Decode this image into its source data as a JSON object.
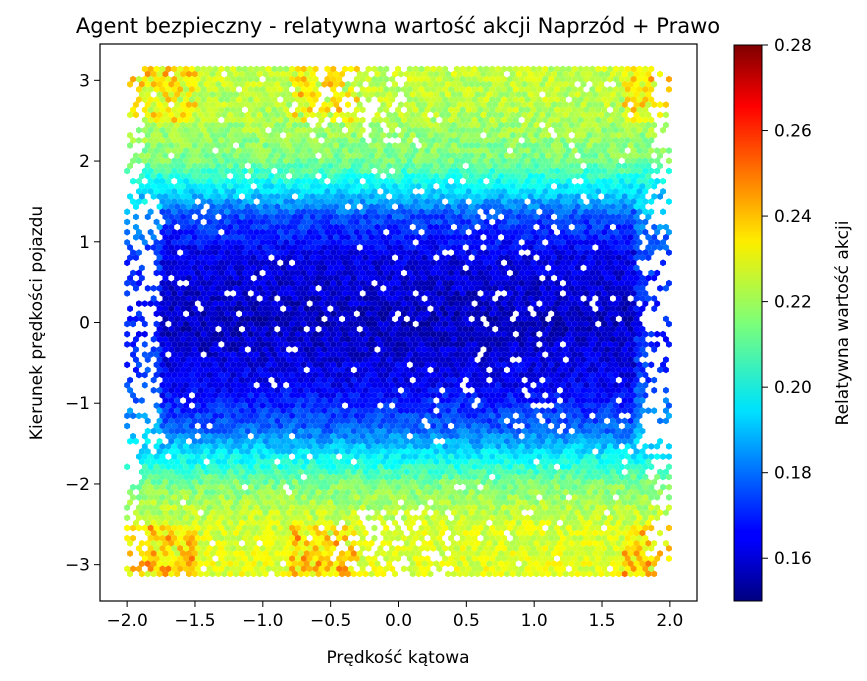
{
  "chart_data": {
    "type": "heatmap",
    "subtype": "hexbin",
    "title": "Agent bezpieczny - relatywna wartość akcji Naprzód + Prawo",
    "xlabel": "Prędkość kątowa",
    "ylabel": "Kierunek prędkości pojazdu",
    "xlim": [
      -2.2,
      2.2
    ],
    "ylim": [
      -3.45,
      3.45
    ],
    "xticks": [
      "−2.0",
      "−1.5",
      "−1.0",
      "−0.5",
      "0.0",
      "0.5",
      "1.0",
      "1.5",
      "2.0"
    ],
    "xtick_values": [
      -2.0,
      -1.5,
      -1.0,
      -0.5,
      0.0,
      0.5,
      1.0,
      1.5,
      2.0
    ],
    "yticks": [
      "3",
      "2",
      "1",
      "0",
      "−1",
      "−2",
      "−3"
    ],
    "ytick_values": [
      3,
      2,
      1,
      0,
      -1,
      -2,
      -3
    ],
    "colormap": "jet",
    "colorbar": {
      "label": "Relatywna wartość akcji",
      "min": 0.15,
      "max": 0.28,
      "ticks": [
        "0.28",
        "0.26",
        "0.24",
        "0.22",
        "0.20",
        "0.18",
        "0.16"
      ],
      "tick_values": [
        0.28,
        0.26,
        0.24,
        0.22,
        0.2,
        0.18,
        0.16
      ]
    },
    "data_extent": {
      "x": [
        -2.0,
        2.0
      ],
      "y": [
        -3.14,
        3.14
      ]
    },
    "value_profile_by_y": [
      {
        "y": -3.14,
        "value": 0.228
      },
      {
        "y": -2.5,
        "value": 0.226
      },
      {
        "y": -2.0,
        "value": 0.215
      },
      {
        "y": -1.6,
        "value": 0.195
      },
      {
        "y": -1.3,
        "value": 0.178
      },
      {
        "y": -0.8,
        "value": 0.165
      },
      {
        "y": 0.0,
        "value": 0.158
      },
      {
        "y": 0.8,
        "value": 0.163
      },
      {
        "y": 1.3,
        "value": 0.175
      },
      {
        "y": 1.6,
        "value": 0.193
      },
      {
        "y": 2.0,
        "value": 0.214
      },
      {
        "y": 2.6,
        "value": 0.222
      },
      {
        "y": 3.14,
        "value": 0.224
      }
    ],
    "grid": false,
    "legend": "none"
  }
}
